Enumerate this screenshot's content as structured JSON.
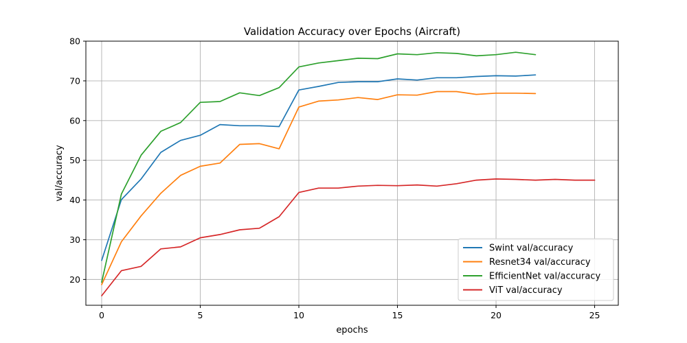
{
  "chart_data": {
    "type": "line",
    "title": "Validation Accuracy over Epochs (Aircraft)",
    "xlabel": "epochs",
    "ylabel": "val/accuracy",
    "xlim": [
      -0.8,
      26.2
    ],
    "ylim": [
      13.5,
      80
    ],
    "xticks": [
      0,
      5,
      10,
      15,
      20,
      25
    ],
    "yticks": [
      20,
      30,
      40,
      50,
      60,
      70,
      80
    ],
    "grid": true,
    "legend_position": "bottom-right",
    "series": [
      {
        "name": "Swint val/accuracy",
        "color": "#1f77b4",
        "x": [
          0,
          1,
          2,
          3,
          4,
          5,
          6,
          7,
          8,
          9,
          10,
          11,
          12,
          13,
          14,
          15,
          16,
          17,
          18,
          19,
          20,
          21,
          22
        ],
        "values": [
          24.8,
          40.1,
          45.3,
          52.0,
          55.0,
          56.3,
          59.0,
          58.7,
          58.7,
          58.5,
          67.7,
          68.6,
          69.6,
          69.8,
          69.8,
          70.5,
          70.2,
          70.8,
          70.8,
          71.1,
          71.3,
          71.2,
          71.5
        ]
      },
      {
        "name": "Resnet34 val/accuracy",
        "color": "#ff7f0e",
        "x": [
          0,
          1,
          2,
          3,
          4,
          5,
          6,
          7,
          8,
          9,
          10,
          11,
          12,
          13,
          14,
          15,
          16,
          17,
          18,
          19,
          20,
          21,
          22
        ],
        "values": [
          18.7,
          29.5,
          36.0,
          41.7,
          46.2,
          48.5,
          49.3,
          54.0,
          54.2,
          52.9,
          63.4,
          64.9,
          65.2,
          65.8,
          65.3,
          66.5,
          66.4,
          67.3,
          67.3,
          66.6,
          66.9,
          66.9,
          66.8
        ]
      },
      {
        "name": "EfficientNet val/accuracy",
        "color": "#2ca02c",
        "x": [
          0,
          1,
          2,
          3,
          4,
          5,
          6,
          7,
          8,
          9,
          10,
          11,
          12,
          13,
          14,
          15,
          16,
          17,
          18,
          19,
          20,
          21,
          22
        ],
        "values": [
          19.3,
          41.5,
          51.3,
          57.3,
          59.5,
          64.6,
          64.8,
          67.0,
          66.3,
          68.3,
          73.5,
          74.5,
          75.1,
          75.7,
          75.6,
          76.8,
          76.6,
          77.1,
          76.9,
          76.3,
          76.6,
          77.2,
          76.6
        ]
      },
      {
        "name": "ViT val/accuracy",
        "color": "#d62728",
        "x": [
          0,
          1,
          2,
          3,
          4,
          5,
          6,
          7,
          8,
          9,
          10,
          11,
          12,
          13,
          14,
          15,
          16,
          17,
          18,
          19,
          20,
          21,
          22,
          23,
          24,
          25
        ],
        "values": [
          15.9,
          22.2,
          23.3,
          27.7,
          28.2,
          30.5,
          31.3,
          32.5,
          32.9,
          35.8,
          41.9,
          43.0,
          43.0,
          43.5,
          43.7,
          43.6,
          43.8,
          43.5,
          44.1,
          45.0,
          45.3,
          45.2,
          45.0,
          45.2,
          45.0,
          45.0
        ]
      }
    ]
  }
}
